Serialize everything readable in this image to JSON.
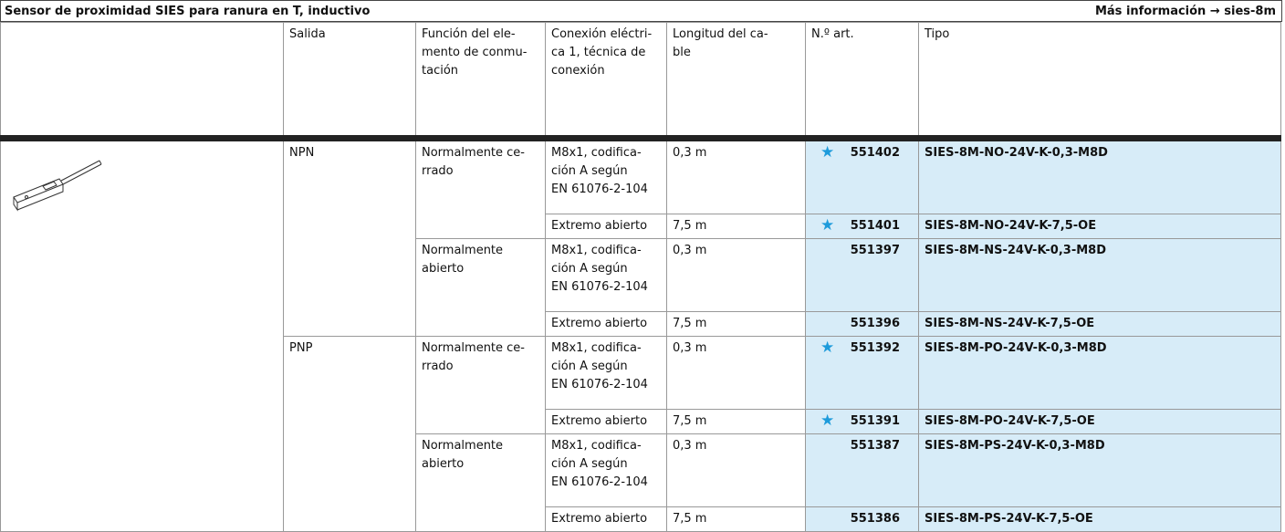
{
  "header": {
    "title": "Sensor de proximidad SIES para ranura en T, inductivo",
    "more": "Más información → sies-8m"
  },
  "table": {
    "columns": [
      "Salida",
      "Función del ele-\nmento de conmu-\ntación",
      "Conexión eléctri-\nca 1, técnica de\nconexión",
      "Longitud del ca-\nble",
      "N.º art.",
      "Tipo"
    ],
    "groups": [
      {
        "output": "NPN",
        "functions": [
          {
            "name": "Normalmente ce-\nrrado",
            "variants": [
              {
                "connection": "M8x1, codifica-\nción A según\nEN 61076-2-104",
                "length": "0,3 m",
                "part": "551402",
                "type": "SIES-8M-NO-24V-K-0,3-M8D",
                "featured": true
              },
              {
                "connection": "Extremo abierto",
                "length": "7,5 m",
                "part": "551401",
                "type": "SIES-8M-NO-24V-K-7,5-OE",
                "featured": true
              }
            ]
          },
          {
            "name": "Normalmente\nabierto",
            "variants": [
              {
                "connection": "M8x1, codifica-\nción A según\nEN 61076-2-104",
                "length": "0,3 m",
                "part": "551397",
                "type": "SIES-8M-NS-24V-K-0,3-M8D",
                "featured": false
              },
              {
                "connection": "Extremo abierto",
                "length": "7,5 m",
                "part": "551396",
                "type": "SIES-8M-NS-24V-K-7,5-OE",
                "featured": false
              }
            ]
          }
        ]
      },
      {
        "output": "PNP",
        "functions": [
          {
            "name": "Normalmente ce-\nrrado",
            "variants": [
              {
                "connection": "M8x1, codifica-\nción A según\nEN 61076-2-104",
                "length": "0,3 m",
                "part": "551392",
                "type": "SIES-8M-PO-24V-K-0,3-M8D",
                "featured": true
              },
              {
                "connection": "Extremo abierto",
                "length": "7,5 m",
                "part": "551391",
                "type": "SIES-8M-PO-24V-K-7,5-OE",
                "featured": true
              }
            ]
          },
          {
            "name": "Normalmente\nabierto",
            "variants": [
              {
                "connection": "M8x1, codifica-\nción A según\nEN 61076-2-104",
                "length": "0,3 m",
                "part": "551387",
                "type": "SIES-8M-PS-24V-K-0,3-M8D",
                "featured": false
              },
              {
                "connection": "Extremo abierto",
                "length": "7,5 m",
                "part": "551386",
                "type": "SIES-8M-PS-24V-K-7,5-OE",
                "featured": false
              }
            ]
          }
        ]
      }
    ]
  }
}
